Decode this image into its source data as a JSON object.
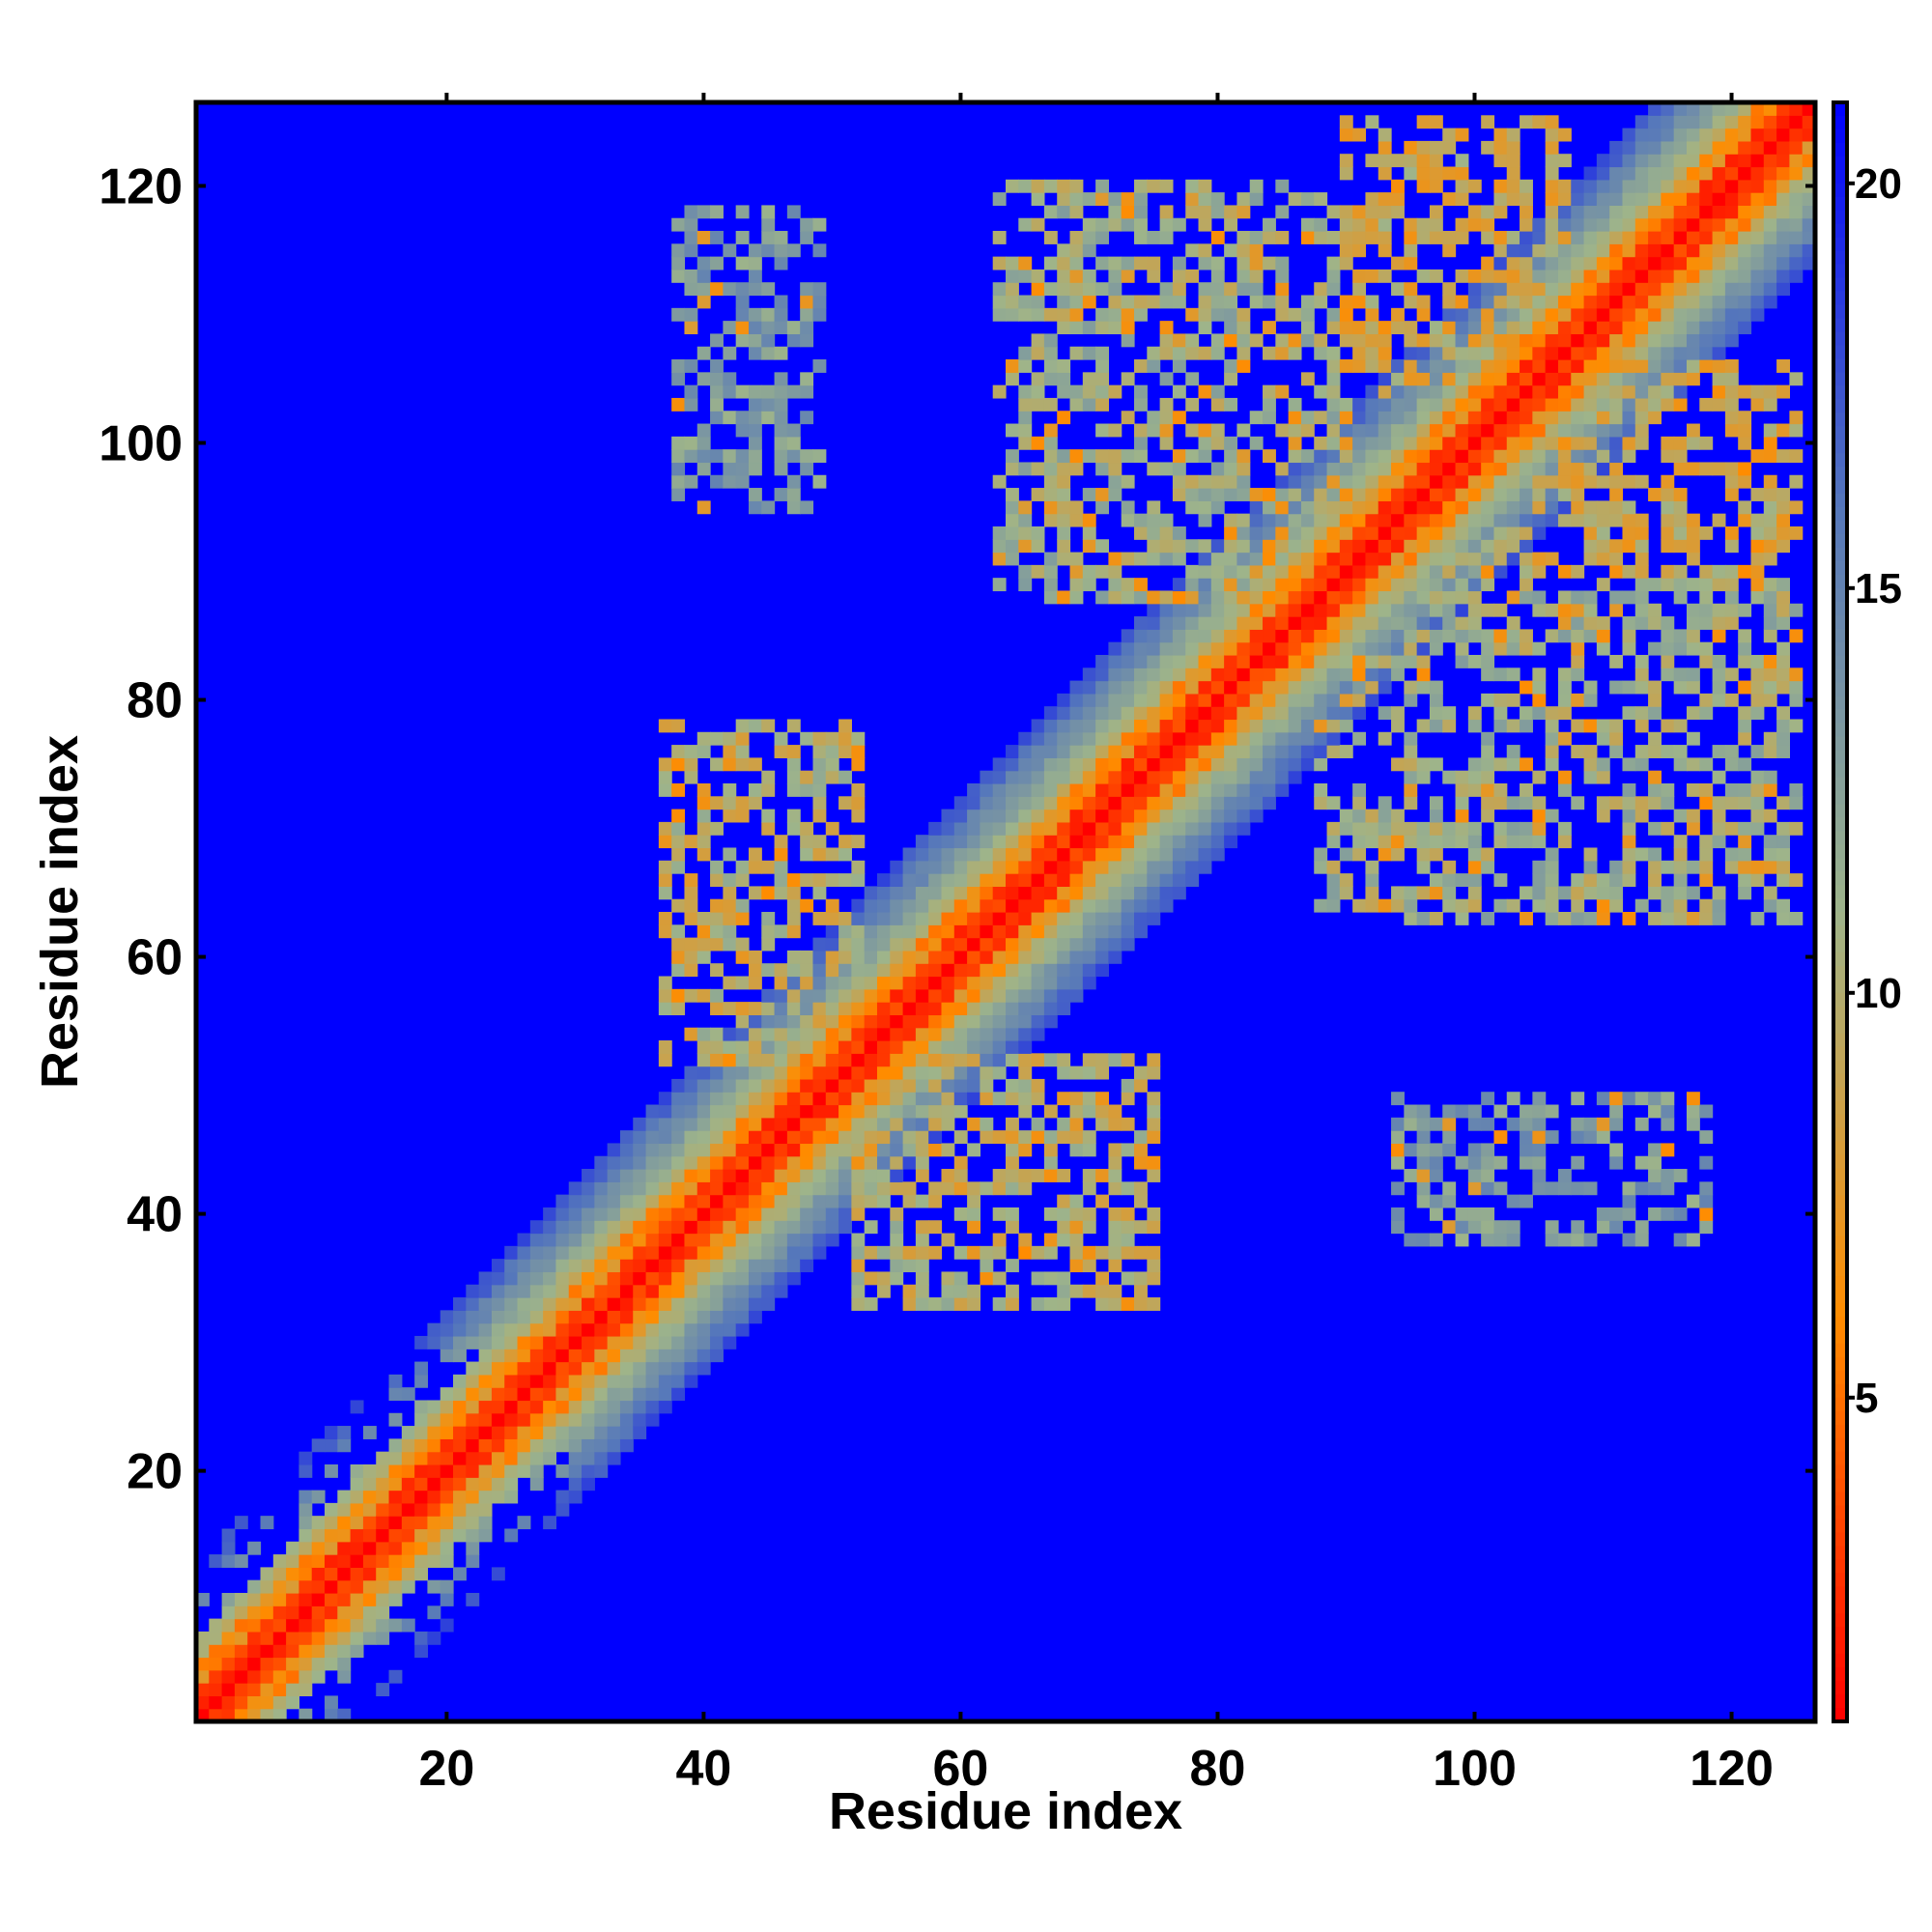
{
  "chart_data": {
    "type": "heatmap",
    "title": "",
    "xlabel": "Residue index",
    "ylabel": "Residue index",
    "xlim": [
      1,
      126
    ],
    "ylim": [
      1,
      126
    ],
    "x_ticks": [
      "20",
      "40",
      "60",
      "80",
      "100",
      "120"
    ],
    "y_ticks": [
      "20",
      "40",
      "60",
      "80",
      "100",
      "120"
    ],
    "colorbar": {
      "range": [
        1,
        21
      ],
      "ticks": [
        "5",
        "10",
        "15",
        "20"
      ],
      "colors": [
        "#ff0000",
        "#ff8c00",
        "#9eb48a",
        "#5577bb",
        "#0000ff"
      ]
    },
    "background_value": 21,
    "diagonal_band": {
      "value_at_offset_0": 1,
      "half_width_residues": 12
    },
    "contact_clusters": [
      {
        "x": [
          37,
          52
        ],
        "y": [
          52,
          78
        ],
        "value": 10
      },
      {
        "x": [
          52,
          75
        ],
        "y": [
          33,
          52
        ],
        "value": 10
      },
      {
        "x": [
          63,
          90
        ],
        "y": [
          88,
          120
        ],
        "value": 11
      },
      {
        "x": [
          88,
          125
        ],
        "y": [
          63,
          93
        ],
        "value": 11
      },
      {
        "x": [
          38,
          49
        ],
        "y": [
          95,
          118
        ],
        "value": 13
      },
      {
        "x": [
          94,
          118
        ],
        "y": [
          38,
          49
        ],
        "value": 13
      },
      {
        "x": [
          90,
          107
        ],
        "y": [
          104,
          125
        ],
        "value": 9
      },
      {
        "x": [
          105,
          125
        ],
        "y": [
          90,
          106
        ],
        "value": 9
      }
    ],
    "grid": false,
    "legend": "colorbar-right"
  }
}
